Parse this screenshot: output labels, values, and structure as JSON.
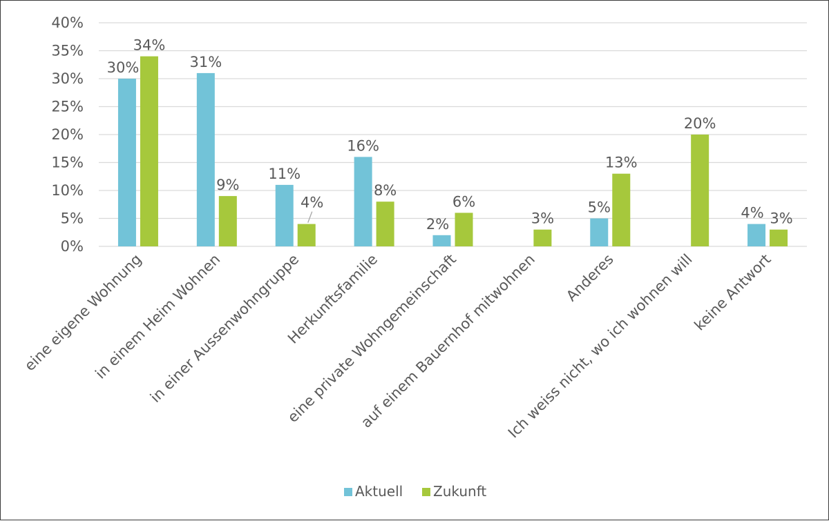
{
  "chart_data": {
    "type": "bar",
    "categories": [
      "eine eigene Wohnung",
      "in einem Heim Wohnen",
      "in einer Aussenwohngruppe",
      "Herkunftsfamilie",
      "eine private Wohngemeinschaft",
      "auf einem Bauernhof mitwohnen",
      "Anderes",
      "Ich weiss nicht, wo ich wohnen will",
      "keine Antwort"
    ],
    "series": [
      {
        "name": "Aktuell",
        "color": "#72c3d8",
        "values": [
          30,
          31,
          11,
          16,
          2,
          null,
          5,
          null,
          4
        ],
        "labels": [
          "30%",
          "31%",
          "11%",
          "16%",
          "2%",
          "",
          "5%",
          "",
          "4%"
        ]
      },
      {
        "name": "Zukunft",
        "color": "#a6c83c",
        "values": [
          34,
          9,
          4,
          8,
          6,
          3,
          13,
          20,
          3
        ],
        "labels": [
          "34%",
          "9%",
          "4%",
          "8%",
          "6%",
          "3%",
          "13%",
          "20%",
          "3%"
        ]
      }
    ],
    "ylim": [
      0,
      40
    ],
    "yticks": [
      "0%",
      "5%",
      "10%",
      "15%",
      "20%",
      "25%",
      "30%",
      "35%",
      "40%"
    ],
    "ytick_values": [
      0,
      5,
      10,
      15,
      20,
      25,
      30,
      35,
      40
    ],
    "grid": true,
    "legend_position": "bottom-center"
  }
}
